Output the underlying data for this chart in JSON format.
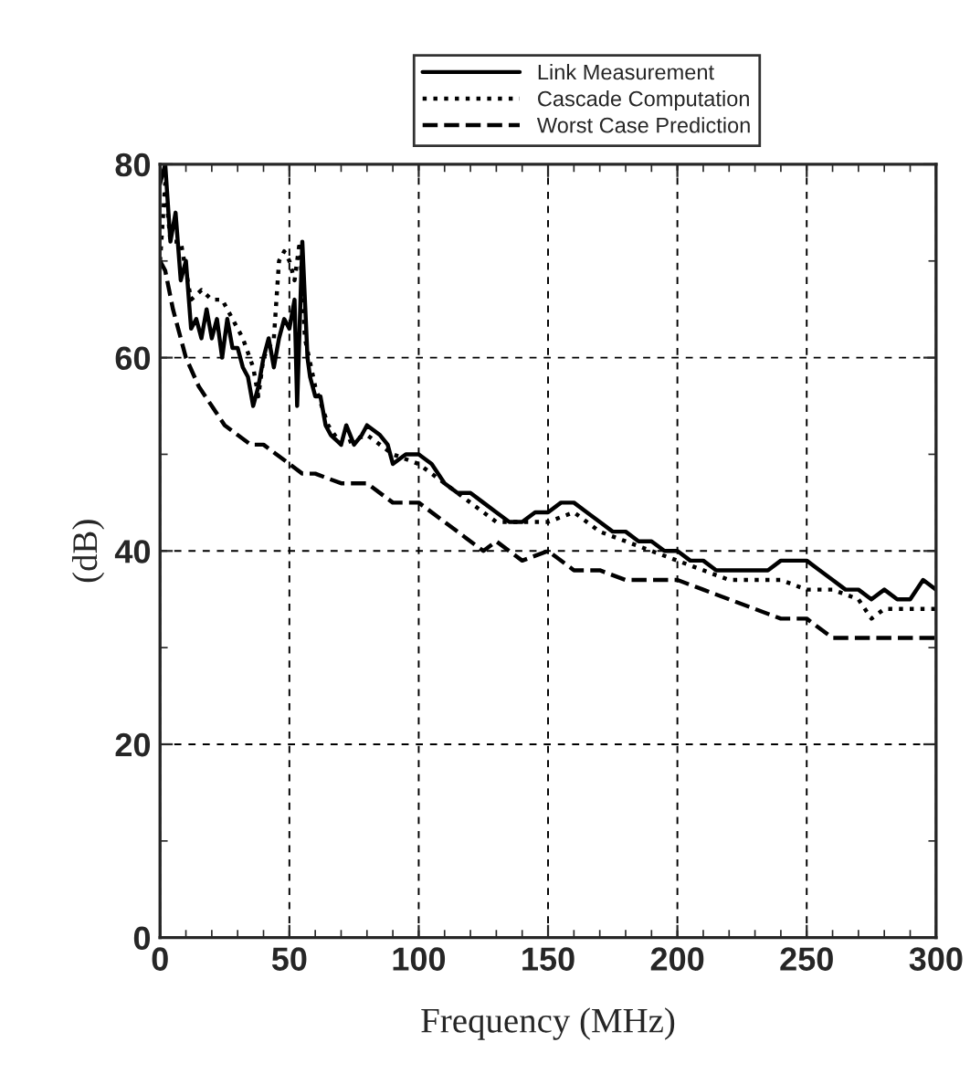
{
  "chart_data": {
    "type": "line",
    "xlabel": "Frequency (MHz)",
    "ylabel": "(dB)",
    "xlim": [
      0,
      300
    ],
    "ylim": [
      0,
      80
    ],
    "xticks": [
      0,
      50,
      100,
      150,
      200,
      250,
      300
    ],
    "yticks": [
      0,
      20,
      40,
      60,
      80
    ],
    "grid": true,
    "legend": "top",
    "series": [
      {
        "name": "Link Measurement",
        "color": "#000000",
        "line_style": "solid",
        "x": [
          0,
          2,
          4,
          6,
          8,
          10,
          12,
          14,
          16,
          18,
          20,
          22,
          24,
          26,
          28,
          30,
          32,
          34,
          36,
          38,
          40,
          42,
          44,
          46,
          48,
          50,
          52,
          53,
          55,
          57,
          58,
          60,
          62,
          64,
          66,
          70,
          72,
          75,
          78,
          80,
          85,
          88,
          90,
          95,
          100,
          105,
          110,
          115,
          120,
          125,
          130,
          135,
          140,
          145,
          150,
          155,
          160,
          165,
          170,
          175,
          180,
          185,
          190,
          195,
          200,
          205,
          210,
          215,
          220,
          225,
          230,
          235,
          240,
          245,
          250,
          255,
          260,
          265,
          270,
          275,
          280,
          285,
          290,
          295,
          300
        ],
        "values": [
          78,
          80,
          72,
          75,
          68,
          70,
          63,
          64,
          62,
          65,
          62,
          64,
          60,
          64,
          61,
          61,
          59,
          58,
          55,
          57,
          60,
          62,
          59,
          62,
          64,
          63,
          66,
          55,
          72,
          60,
          58,
          56,
          56,
          53,
          52,
          51,
          53,
          51,
          52,
          53,
          52,
          51,
          49,
          50,
          50,
          49,
          47,
          46,
          46,
          45,
          44,
          43,
          43,
          44,
          44,
          45,
          45,
          44,
          43,
          42,
          42,
          41,
          41,
          40,
          40,
          39,
          39,
          38,
          38,
          38,
          38,
          38,
          39,
          39,
          39,
          38,
          37,
          36,
          36,
          35,
          36,
          35,
          35,
          37,
          36
        ]
      },
      {
        "name": "Cascade Computation",
        "color": "#000000",
        "line_style": "dotted",
        "x": [
          0,
          2,
          4,
          8,
          12,
          16,
          20,
          24,
          28,
          32,
          36,
          38,
          40,
          44,
          46,
          48,
          50,
          52,
          54,
          56,
          60,
          65,
          70,
          80,
          90,
          100,
          110,
          120,
          130,
          140,
          150,
          160,
          170,
          180,
          190,
          200,
          210,
          220,
          230,
          240,
          250,
          260,
          270,
          275,
          280,
          290,
          300
        ],
        "values": [
          70,
          78,
          72,
          72,
          66,
          67,
          66,
          66,
          64,
          62,
          59,
          56,
          60,
          62,
          70,
          71,
          70,
          68,
          72,
          62,
          57,
          53,
          51,
          52,
          50,
          49,
          47,
          45,
          43,
          43,
          43,
          44,
          42,
          41,
          40,
          39,
          38,
          37,
          37,
          37,
          36,
          36,
          35,
          33,
          34,
          34,
          34
        ]
      },
      {
        "name": "Worst Case Prediction",
        "color": "#000000",
        "line_style": "dashed",
        "x": [
          0,
          2,
          5,
          10,
          15,
          20,
          25,
          30,
          35,
          40,
          45,
          50,
          55,
          60,
          70,
          80,
          90,
          100,
          110,
          120,
          125,
          130,
          140,
          150,
          160,
          170,
          180,
          190,
          200,
          210,
          220,
          230,
          240,
          250,
          260,
          270,
          280,
          290,
          300
        ],
        "values": [
          70,
          69,
          65,
          60,
          57,
          55,
          53,
          52,
          51,
          51,
          50,
          49,
          48,
          48,
          47,
          47,
          45,
          45,
          43,
          41,
          40,
          41,
          39,
          40,
          38,
          38,
          37,
          37,
          37,
          36,
          35,
          34,
          33,
          33,
          31,
          31,
          31,
          31,
          31
        ]
      }
    ]
  }
}
